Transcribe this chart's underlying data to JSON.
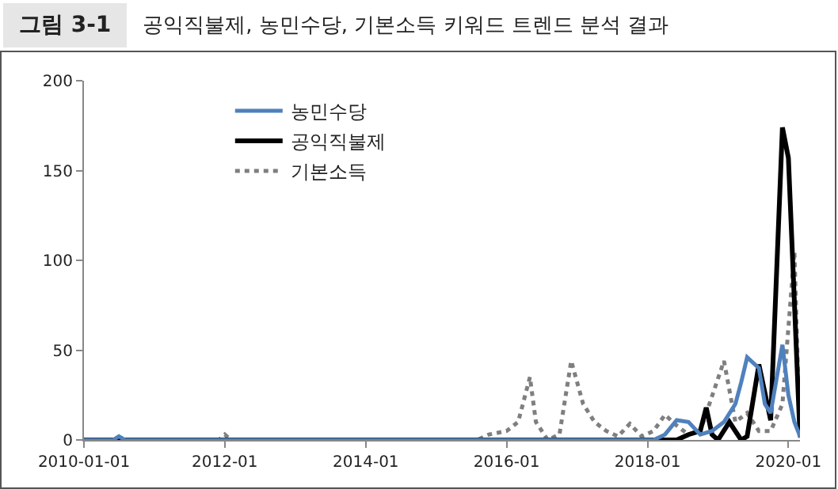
{
  "chart_data": {
    "type": "line",
    "title": "그림 3-1",
    "subtitle": "공익직불제, 농민수당, 기본소득 키워드 트렌드 분석 결과",
    "xlim": [
      "2010-01-01",
      "2020-03-01"
    ],
    "xticks": [
      {
        "value": "2010-01-01",
        "label": "2010-01-01"
      },
      {
        "value": "2012-01-01",
        "label": "2012-01"
      },
      {
        "value": "2014-01-01",
        "label": "2014-01"
      },
      {
        "value": "2016-01-01",
        "label": "2016-01"
      },
      {
        "value": "2018-01-01",
        "label": "2018-01"
      },
      {
        "value": "2020-01-01",
        "label": "2020-01"
      }
    ],
    "ylim": [
      0,
      200
    ],
    "yticks": [
      0,
      50,
      100,
      150,
      200
    ],
    "grid": false,
    "legend": "top left",
    "series": [
      {
        "name": "농민수당",
        "color": "#4f81bd",
        "line_style": "solid",
        "x": [
          "2010-01-01",
          "2010-06-01",
          "2010-07-01",
          "2010-08-01",
          "2018-02-01",
          "2018-04-01",
          "2018-06-01",
          "2018-08-01",
          "2018-10-01",
          "2018-12-01",
          "2019-02-01",
          "2019-04-01",
          "2019-05-01",
          "2019-06-01",
          "2019-08-01",
          "2019-09-01",
          "2019-10-01",
          "2019-12-01",
          "2020-01-01",
          "2020-02-01",
          "2020-03-01"
        ],
        "values": [
          0,
          0,
          2,
          0,
          0,
          3,
          11,
          10,
          3,
          5,
          10,
          20,
          32,
          46,
          40,
          20,
          15,
          53,
          25,
          10,
          2
        ]
      },
      {
        "name": "공익직불제",
        "color": "#000000",
        "line_style": "solid",
        "x": [
          "2010-01-01",
          "2018-06-01",
          "2018-08-01",
          "2018-10-01",
          "2018-11-01",
          "2018-12-01",
          "2019-01-01",
          "2019-03-01",
          "2019-05-01",
          "2019-06-01",
          "2019-08-01",
          "2019-10-01",
          "2019-12-01",
          "2020-01-01",
          "2020-03-01"
        ],
        "values": [
          0,
          0,
          3,
          5,
          18,
          3,
          0,
          10,
          0,
          2,
          42,
          11,
          174,
          157,
          2
        ]
      },
      {
        "name": "기본소득",
        "color": "#7f7f7f",
        "line_style": "dotted",
        "x": [
          "2010-01-01",
          "2011-12-01",
          "2012-01-01",
          "2012-02-01",
          "2015-08-01",
          "2015-10-01",
          "2016-01-01",
          "2016-03-01",
          "2016-05-01",
          "2016-06-01",
          "2016-08-01",
          "2016-10-01",
          "2016-12-01",
          "2017-02-01",
          "2017-04-01",
          "2017-06-01",
          "2017-08-01",
          "2017-10-01",
          "2017-12-01",
          "2018-02-01",
          "2018-04-01",
          "2018-06-01",
          "2018-08-01",
          "2018-10-01",
          "2019-02-01",
          "2019-04-01",
          "2019-06-01",
          "2019-08-01",
          "2019-10-01",
          "2019-12-01",
          "2020-02-01",
          "2020-03-01"
        ],
        "values": [
          0,
          0,
          3,
          0,
          0,
          3,
          5,
          10,
          35,
          10,
          0,
          3,
          44,
          20,
          10,
          5,
          2,
          9,
          2,
          5,
          14,
          8,
          3,
          5,
          44,
          10,
          15,
          5,
          5,
          20,
          105,
          0
        ]
      }
    ]
  }
}
